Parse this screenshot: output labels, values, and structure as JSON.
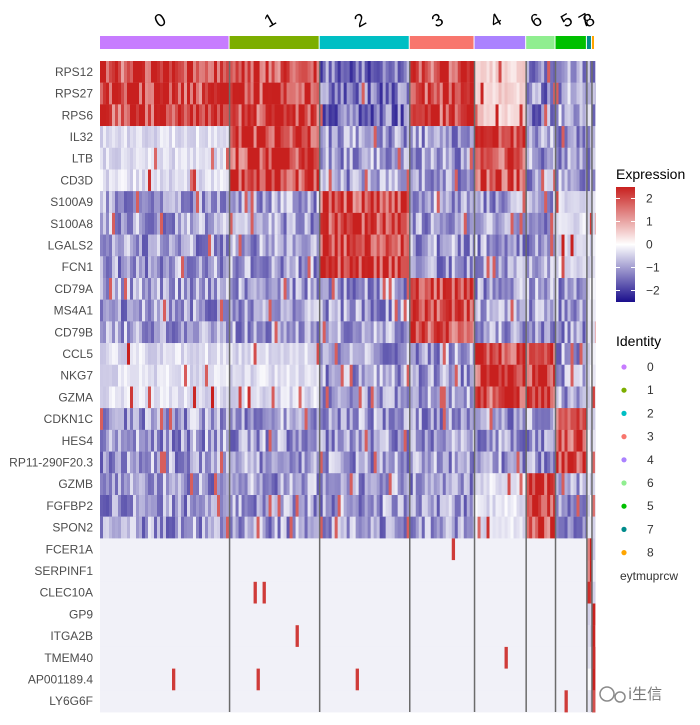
{
  "chart_data": {
    "type": "heatmap",
    "genes": [
      "RPS12",
      "RPS27",
      "RPS6",
      "IL32",
      "LTB",
      "CD3D",
      "S100A9",
      "S100A8",
      "LGALS2",
      "FCN1",
      "CD79A",
      "MS4A1",
      "CD79B",
      "CCL5",
      "NKG7",
      "GZMA",
      "CDKN1C",
      "HES4",
      "RP11-290F20.3",
      "GZMB",
      "FGFBP2",
      "SPON2",
      "FCER1A",
      "SERPINF1",
      "CLEC10A",
      "GP9",
      "ITGA2B",
      "TMEM40",
      "AP001189.4",
      "LY6G6F"
    ],
    "clusters": [
      {
        "id": "0",
        "color": "#C77CFF",
        "cells": 128
      },
      {
        "id": "1",
        "color": "#7CAE00",
        "cells": 89
      },
      {
        "id": "2",
        "color": "#00BFC4",
        "cells": 89
      },
      {
        "id": "3",
        "color": "#F8766D",
        "cells": 64
      },
      {
        "id": "4",
        "color": "#AB82FF",
        "cells": 51
      },
      {
        "id": "6",
        "color": "#90EE90",
        "cells": 29
      },
      {
        "id": "5",
        "color": "#00C000",
        "cells": 31
      },
      {
        "id": "7",
        "color": "#008B8B",
        "cells": 5
      },
      {
        "id": "8",
        "color": "#FFA500",
        "cells": 3
      }
    ],
    "marker_blocks": [
      {
        "genes": [
          "RPS12",
          "RPS27",
          "RPS6"
        ],
        "high_in": [
          "0",
          "1",
          "3"
        ],
        "low_in": [
          "2",
          "6",
          "5",
          "7",
          "8"
        ]
      },
      {
        "genes": [
          "IL32",
          "LTB",
          "CD3D"
        ],
        "high_in": [
          "1",
          "4"
        ],
        "low_in": [
          "2",
          "3",
          "6",
          "5",
          "7",
          "8"
        ]
      },
      {
        "genes": [
          "S100A9",
          "S100A8",
          "LGALS2",
          "FCN1"
        ],
        "high_in": [
          "2"
        ],
        "low_in": [
          "0",
          "1",
          "3",
          "4",
          "6"
        ]
      },
      {
        "genes": [
          "CD79A",
          "MS4A1",
          "CD79B"
        ],
        "high_in": [
          "3"
        ],
        "low_in": [
          "0",
          "1",
          "2",
          "4",
          "6",
          "5"
        ]
      },
      {
        "genes": [
          "CCL5",
          "NKG7",
          "GZMA"
        ],
        "high_in": [
          "4",
          "6"
        ],
        "low_in": [
          "2",
          "3",
          "5"
        ]
      },
      {
        "genes": [
          "CDKN1C",
          "HES4",
          "RP11-290F20.3"
        ],
        "high_in": [
          "5"
        ],
        "low_in": [
          "0",
          "1",
          "2",
          "3",
          "4",
          "6"
        ]
      },
      {
        "genes": [
          "GZMB",
          "FGFBP2",
          "SPON2"
        ],
        "high_in": [
          "6"
        ],
        "low_in": [
          "0",
          "1",
          "2",
          "3",
          "5"
        ]
      },
      {
        "genes": [
          "FCER1A",
          "SERPINF1",
          "CLEC10A"
        ],
        "high_in": [
          "7"
        ],
        "low_in": []
      },
      {
        "genes": [
          "GP9",
          "ITGA2B",
          "TMEM40",
          "AP001189.4",
          "LY6G6F"
        ],
        "high_in": [
          "8"
        ],
        "low_in": []
      }
    ],
    "color_scale": {
      "title": "Expression",
      "low": "#1A0E8C",
      "mid": "#FFFFFF",
      "high": "#C8201E",
      "limits": [
        -2.5,
        2.5
      ],
      "ticks": [
        2,
        1,
        0,
        -1,
        -2
      ]
    },
    "identity_legend": {
      "title": "Identity",
      "entries": [
        {
          "label": "0",
          "color": "#C77CFF"
        },
        {
          "label": "1",
          "color": "#7CAE00"
        },
        {
          "label": "2",
          "color": "#00BFC4"
        },
        {
          "label": "3",
          "color": "#F8766D"
        },
        {
          "label": "4",
          "color": "#AB82FF"
        },
        {
          "label": "6",
          "color": "#90EE90"
        },
        {
          "label": "5",
          "color": "#00C000"
        },
        {
          "label": "7",
          "color": "#008B8B"
        },
        {
          "label": "8",
          "color": "#FFA500"
        }
      ],
      "extra": "eytmuprcw"
    },
    "watermark": "i生信"
  }
}
